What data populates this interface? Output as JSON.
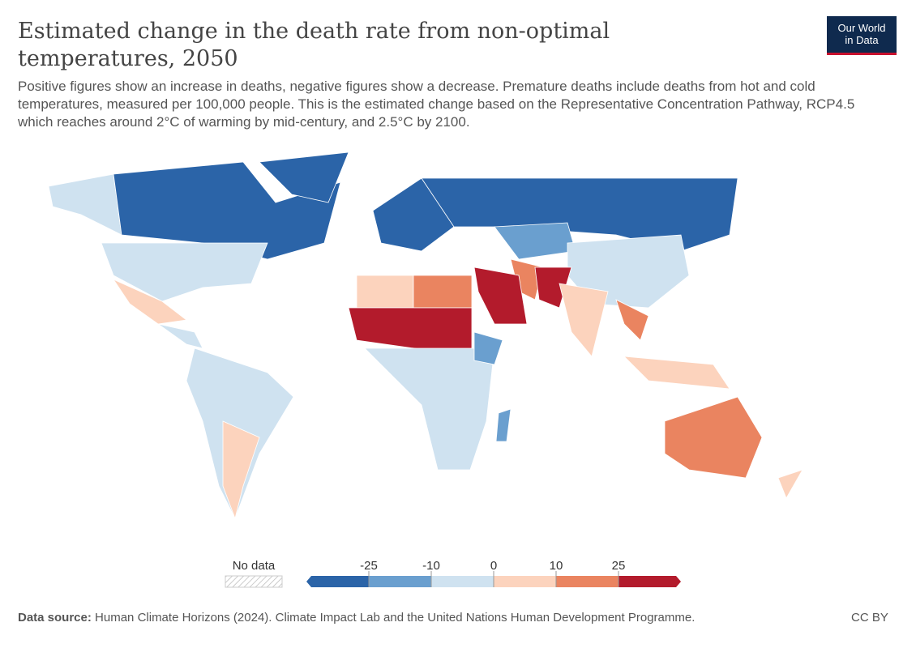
{
  "header": {
    "title": "Estimated change in the death rate from non-optimal temperatures, 2050",
    "subtitle": "Positive figures show an increase in deaths, negative figures show a decrease. Premature deaths include deaths from hot and cold temperatures, measured per 100,000 people. This is the estimated change based on the Representative Concentration Pathway, RCP4.5 which reaches around 2°C of warming by mid-century, and 2.5°C by 2100.",
    "logo": [
      "Our World",
      "in Data"
    ]
  },
  "legend": {
    "no_data": "No data",
    "ticks": [
      -25,
      -10,
      0,
      10,
      25
    ],
    "colors": [
      "#2b64a8",
      "#6a9fcf",
      "#cfe2f0",
      "#fcd3bd",
      "#ea8460",
      "#b31b2c"
    ]
  },
  "footer": {
    "source_label": "Data source:",
    "source": "Human Climate Horizons (2024). Climate Impact Lab and the United Nations Human Development Programme.",
    "license": "CC BY"
  }
}
